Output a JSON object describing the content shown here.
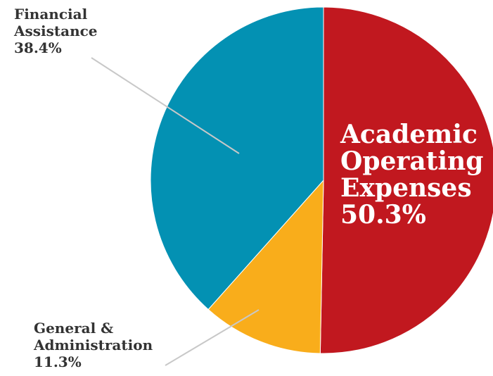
{
  "chart_data": {
    "type": "pie",
    "slices": [
      {
        "name": "Academic Operating Expenses",
        "value": 50.3,
        "color": "#c1181f"
      },
      {
        "name": "General & Administration",
        "value": 11.3,
        "color": "#f9ad1b"
      },
      {
        "name": "Financial Assistance",
        "value": 38.4,
        "color": "#0391b3"
      }
    ],
    "start": "12 o'clock",
    "direction": "clockwise",
    "labels": {
      "financial": {
        "line1": "Financial",
        "line2": "Assistance",
        "value": "38.4%"
      },
      "general": {
        "line1": "General &",
        "line2": "Administration",
        "value": "11.3%"
      },
      "academic": {
        "line1": "Academic",
        "line2": "Operating",
        "line3": "Expenses",
        "value": "50.3%"
      }
    },
    "leader_line_color": "#c8c8c8",
    "label_color": "#333333",
    "inside_label_color": "#ffffff"
  }
}
